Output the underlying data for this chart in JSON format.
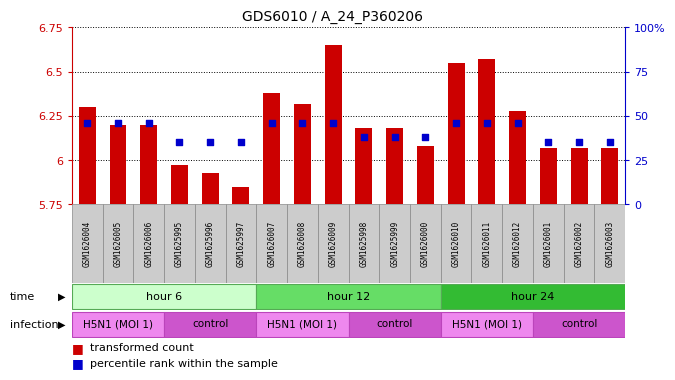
{
  "title": "GDS6010 / A_24_P360206",
  "samples": [
    "GSM1626004",
    "GSM1626005",
    "GSM1626006",
    "GSM1625995",
    "GSM1625996",
    "GSM1625997",
    "GSM1626007",
    "GSM1626008",
    "GSM1626009",
    "GSM1625998",
    "GSM1625999",
    "GSM1626000",
    "GSM1626010",
    "GSM1626011",
    "GSM1626012",
    "GSM1626001",
    "GSM1626002",
    "GSM1626003"
  ],
  "transformed_count": [
    6.3,
    6.2,
    6.2,
    5.97,
    5.93,
    5.85,
    6.38,
    6.32,
    6.65,
    6.18,
    6.18,
    6.08,
    6.55,
    6.57,
    6.28,
    6.07,
    6.07,
    6.07
  ],
  "percentile_rank": [
    46,
    46,
    46,
    35,
    35,
    35,
    46,
    46,
    46,
    38,
    38,
    38,
    46,
    46,
    46,
    35,
    35,
    35
  ],
  "ymin": 5.75,
  "ymax": 6.75,
  "yticks": [
    5.75,
    6.0,
    6.25,
    6.5,
    6.75
  ],
  "ytick_labels": [
    "5.75",
    "6",
    "6.25",
    "6.5",
    "6.75"
  ],
  "right_yticks": [
    0,
    25,
    50,
    75,
    100
  ],
  "right_ytick_labels": [
    "0",
    "25",
    "50",
    "75",
    "100%"
  ],
  "bar_color": "#CC0000",
  "dot_color": "#0000CC",
  "bar_bottom": 5.75,
  "groups": [
    {
      "label": "hour 6",
      "start": 0,
      "end": 6,
      "bg_color": "#CCFFCC",
      "border_color": "#55AA55"
    },
    {
      "label": "hour 12",
      "start": 6,
      "end": 12,
      "bg_color": "#66DD66",
      "border_color": "#55AA55"
    },
    {
      "label": "hour 24",
      "start": 12,
      "end": 18,
      "bg_color": "#33BB33",
      "border_color": "#55AA55"
    }
  ],
  "infection_groups": [
    {
      "label": "H5N1 (MOI 1)",
      "start": 0,
      "end": 3,
      "bg_color": "#EE88EE"
    },
    {
      "label": "control",
      "start": 3,
      "end": 6,
      "bg_color": "#CC55CC"
    },
    {
      "label": "H5N1 (MOI 1)",
      "start": 6,
      "end": 9,
      "bg_color": "#EE88EE"
    },
    {
      "label": "control",
      "start": 9,
      "end": 12,
      "bg_color": "#CC55CC"
    },
    {
      "label": "H5N1 (MOI 1)",
      "start": 12,
      "end": 15,
      "bg_color": "#EE88EE"
    },
    {
      "label": "control",
      "start": 15,
      "end": 18,
      "bg_color": "#CC55CC"
    }
  ],
  "time_label": "time",
  "infection_label": "infection",
  "axis_color": "#CC0000",
  "right_axis_color": "#0000CC",
  "sample_bg_color": "#CCCCCC",
  "sample_border_color": "#888888"
}
